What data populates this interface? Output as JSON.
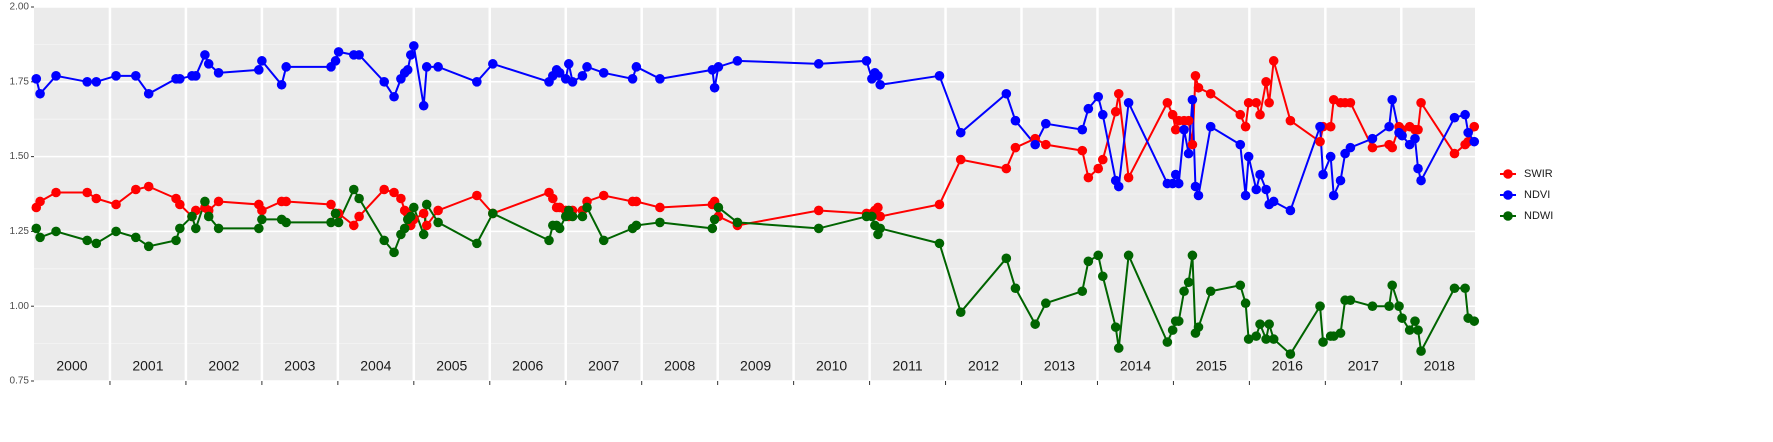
{
  "chart_data": {
    "type": "line",
    "x": [
      2000.03,
      2000.08,
      2000.29,
      2000.7,
      2000.82,
      2001.08,
      2001.34,
      2001.51,
      2001.87,
      2001.92,
      2002.08,
      2002.13,
      2002.25,
      2002.3,
      2002.43,
      2002.96,
      2003.0,
      2003.26,
      2003.32,
      2003.91,
      2003.97,
      2004.01,
      2004.21,
      2004.28,
      2004.61,
      2004.74,
      2004.83,
      2004.88,
      2004.92,
      2004.96,
      2005.0,
      2005.13,
      2005.17,
      2005.32,
      2005.83,
      2006.04,
      2006.78,
      2006.83,
      2006.88,
      2006.92,
      2007.0,
      2007.04,
      2007.09,
      2007.22,
      2007.28,
      2007.5,
      2007.88,
      2007.93,
      2008.24,
      2008.93,
      2008.96,
      2009.01,
      2009.26,
      2010.33,
      2010.96,
      2011.03,
      2011.07,
      2011.11,
      2011.14,
      2011.92,
      2012.2,
      2012.8,
      2012.92,
      2013.18,
      2013.32,
      2013.8,
      2013.88,
      2014.01,
      2014.07,
      2014.24,
      2014.28,
      2014.41,
      2014.92,
      2014.99,
      2015.03,
      2015.07,
      2015.14,
      2015.2,
      2015.25,
      2015.29,
      2015.33,
      2015.49,
      2015.88,
      2015.95,
      2015.99,
      2016.09,
      2016.14,
      2016.22,
      2016.26,
      2016.32,
      2016.54,
      2016.93,
      2016.97,
      2017.07,
      2017.11,
      2017.2,
      2017.26,
      2017.33,
      2017.62,
      2017.84,
      2017.88,
      2017.97,
      2018.01,
      2018.11,
      2018.18,
      2018.22,
      2018.26,
      2018.7,
      2018.84,
      2018.88,
      2018.96
    ],
    "series": [
      {
        "name": "SWIR",
        "color": "#ff0000",
        "values": [
          1.33,
          1.35,
          1.38,
          1.38,
          1.36,
          1.34,
          1.39,
          1.4,
          1.36,
          1.34,
          1.3,
          1.32,
          1.33,
          1.32,
          1.35,
          1.34,
          1.32,
          1.35,
          1.35,
          1.34,
          1.31,
          1.31,
          1.27,
          1.3,
          1.39,
          1.38,
          1.36,
          1.32,
          1.31,
          1.27,
          1.29,
          1.31,
          1.27,
          1.32,
          1.37,
          1.31,
          1.38,
          1.36,
          1.33,
          1.33,
          1.32,
          1.3,
          1.32,
          1.32,
          1.35,
          1.37,
          1.35,
          1.35,
          1.33,
          1.34,
          1.35,
          1.3,
          1.27,
          1.32,
          1.31,
          1.31,
          1.32,
          1.33,
          1.3,
          1.34,
          1.49,
          1.46,
          1.53,
          1.56,
          1.54,
          1.52,
          1.43,
          1.46,
          1.49,
          1.65,
          1.71,
          1.43,
          1.68,
          1.64,
          1.59,
          1.62,
          1.62,
          1.62,
          1.54,
          1.77,
          1.73,
          1.71,
          1.64,
          1.6,
          1.68,
          1.68,
          1.64,
          1.75,
          1.68,
          1.82,
          1.62,
          1.55,
          1.6,
          1.6,
          1.69,
          1.68,
          1.68,
          1.68,
          1.53,
          1.54,
          1.53,
          1.6,
          1.59,
          1.6,
          1.59,
          1.59,
          1.68,
          1.51,
          1.54,
          1.55,
          1.6
        ]
      },
      {
        "name": "NDVI",
        "color": "#0000ff",
        "values": [
          1.76,
          1.71,
          1.77,
          1.75,
          1.75,
          1.77,
          1.77,
          1.71,
          1.76,
          1.76,
          1.77,
          1.77,
          1.84,
          1.81,
          1.78,
          1.79,
          1.82,
          1.74,
          1.8,
          1.8,
          1.82,
          1.85,
          1.84,
          1.84,
          1.75,
          1.7,
          1.76,
          1.78,
          1.79,
          1.84,
          1.87,
          1.67,
          1.8,
          1.8,
          1.75,
          1.81,
          1.75,
          1.77,
          1.79,
          1.78,
          1.76,
          1.81,
          1.75,
          1.77,
          1.8,
          1.78,
          1.76,
          1.8,
          1.76,
          1.79,
          1.73,
          1.8,
          1.82,
          1.81,
          1.82,
          1.76,
          1.78,
          1.77,
          1.74,
          1.77,
          1.58,
          1.71,
          1.62,
          1.54,
          1.61,
          1.59,
          1.66,
          1.7,
          1.64,
          1.42,
          1.4,
          1.68,
          1.41,
          1.41,
          1.44,
          1.41,
          1.59,
          1.51,
          1.69,
          1.4,
          1.37,
          1.6,
          1.54,
          1.37,
          1.5,
          1.39,
          1.44,
          1.39,
          1.34,
          1.35,
          1.32,
          1.6,
          1.44,
          1.5,
          1.37,
          1.42,
          1.51,
          1.53,
          1.56,
          1.6,
          1.69,
          1.58,
          1.57,
          1.54,
          1.56,
          1.46,
          1.42,
          1.63,
          1.64,
          1.58,
          1.55
        ]
      },
      {
        "name": "NDWI",
        "color": "#006400",
        "values": [
          1.26,
          1.23,
          1.25,
          1.22,
          1.21,
          1.25,
          1.23,
          1.2,
          1.22,
          1.26,
          1.3,
          1.26,
          1.35,
          1.3,
          1.26,
          1.26,
          1.29,
          1.29,
          1.28,
          1.28,
          1.31,
          1.28,
          1.39,
          1.36,
          1.22,
          1.18,
          1.24,
          1.26,
          1.29,
          1.3,
          1.33,
          1.24,
          1.34,
          1.28,
          1.21,
          1.31,
          1.22,
          1.27,
          1.27,
          1.26,
          1.3,
          1.32,
          1.3,
          1.3,
          1.33,
          1.22,
          1.26,
          1.27,
          1.28,
          1.26,
          1.29,
          1.33,
          1.28,
          1.26,
          1.3,
          1.3,
          1.27,
          1.24,
          1.26,
          1.21,
          0.98,
          1.16,
          1.06,
          0.94,
          1.01,
          1.05,
          1.15,
          1.17,
          1.1,
          0.93,
          0.86,
          1.17,
          0.88,
          0.92,
          0.95,
          0.95,
          1.05,
          1.08,
          1.17,
          0.91,
          0.93,
          1.05,
          1.07,
          1.01,
          0.89,
          0.9,
          0.94,
          0.89,
          0.94,
          0.89,
          0.84,
          1.0,
          0.88,
          0.9,
          0.9,
          0.91,
          1.02,
          1.02,
          1.0,
          1.0,
          1.07,
          1.0,
          0.96,
          0.92,
          0.95,
          0.92,
          0.85,
          1.06,
          1.06,
          0.96,
          0.95
        ]
      }
    ],
    "xlim": [
      2000,
      2018.97
    ],
    "xgrid": [
      2001,
      2002,
      2003,
      2004,
      2005,
      2006,
      2007,
      2008,
      2009,
      2010,
      2011,
      2012,
      2013,
      2014,
      2015,
      2016,
      2017,
      2018
    ],
    "xticks": [
      {
        "value": 2000.5,
        "label": "2000"
      },
      {
        "value": 2001.5,
        "label": "2001"
      },
      {
        "value": 2002.5,
        "label": "2002"
      },
      {
        "value": 2003.5,
        "label": "2003"
      },
      {
        "value": 2004.5,
        "label": "2004"
      },
      {
        "value": 2005.5,
        "label": "2005"
      },
      {
        "value": 2006.5,
        "label": "2006"
      },
      {
        "value": 2007.5,
        "label": "2007"
      },
      {
        "value": 2008.5,
        "label": "2008"
      },
      {
        "value": 2009.5,
        "label": "2009"
      },
      {
        "value": 2010.5,
        "label": "2010"
      },
      {
        "value": 2011.5,
        "label": "2011"
      },
      {
        "value": 2012.5,
        "label": "2012"
      },
      {
        "value": 2013.5,
        "label": "2013"
      },
      {
        "value": 2014.5,
        "label": "2014"
      },
      {
        "value": 2015.5,
        "label": "2015"
      },
      {
        "value": 2016.5,
        "label": "2016"
      },
      {
        "value": 2017.5,
        "label": "2017"
      },
      {
        "value": 2018.5,
        "label": "2018"
      }
    ],
    "ylim": [
      0.75,
      2.0
    ],
    "yticks": [
      {
        "value": 0.75,
        "label": "0.75"
      },
      {
        "value": 1.0,
        "label": "1.00"
      },
      {
        "value": 1.25,
        "label": "1.25"
      },
      {
        "value": 1.5,
        "label": "1.50"
      },
      {
        "value": 1.75,
        "label": "1.75"
      },
      {
        "value": 2.0,
        "label": "2.00"
      }
    ],
    "grid": true,
    "legend": "right"
  }
}
